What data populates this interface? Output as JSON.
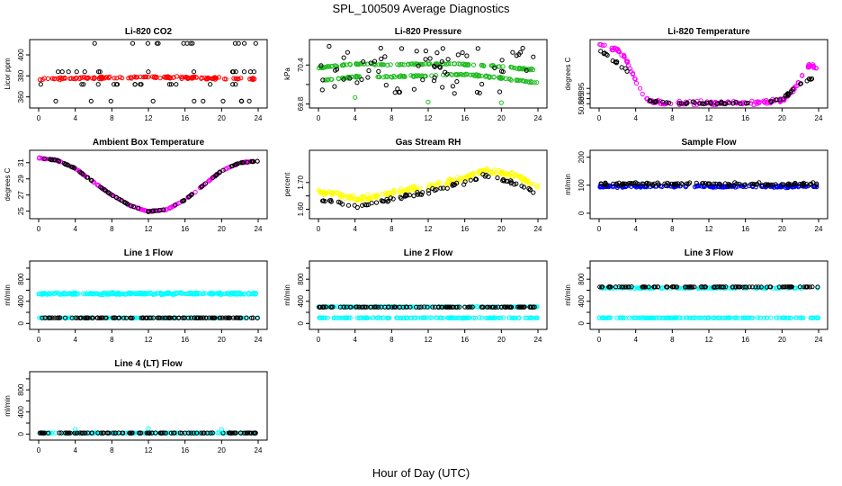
{
  "page": {
    "title": "SPL_100509  Average Diagnostics",
    "xlabel": "Hour of Day (UTC)"
  },
  "colors": {
    "black": "#000000",
    "red": "#ff0000",
    "green": "#22bb22",
    "magenta": "#ff00ff",
    "yellow": "#ffff00",
    "blue": "#0000ff",
    "cyan": "#00ffff"
  },
  "chart_data": [
    {
      "type": "scatter",
      "title": "Li-820 CO2",
      "ylabel": "Licor ppm",
      "xlim": [
        0,
        24
      ],
      "ylim": [
        352,
        412
      ],
      "xticks": [
        0,
        4,
        8,
        12,
        16,
        20,
        24
      ],
      "yticks": [
        360,
        380,
        400
      ],
      "series": [
        {
          "name": "red",
          "color": "red",
          "gen": "line",
          "pts": [
            [
              0,
              377
            ],
            [
              6,
              378
            ],
            [
              12,
              379
            ],
            [
              18,
              378
            ],
            [
              24,
              377
            ]
          ],
          "jitter": 1.5,
          "n": 140
        },
        {
          "name": "black",
          "color": "black",
          "gen": "levels",
          "levels": [
            356,
            372,
            384,
            411
          ],
          "n": 56
        }
      ]
    },
    {
      "type": "scatter",
      "title": "Li-820 Pressure",
      "ylabel": "kPa",
      "xlim": [
        0,
        24
      ],
      "ylim": [
        69.78,
        70.75
      ],
      "xticks": [
        0,
        4,
        8,
        12,
        16,
        20,
        24
      ],
      "yticks": [
        69.8,
        70.1,
        70.4
      ],
      "ytick_labels": [
        "69.8",
        "",
        "70.4"
      ],
      "series": [
        {
          "name": "green-upper",
          "color": "green",
          "gen": "line",
          "pts": [
            [
              0,
              70.36
            ],
            [
              4,
              70.42
            ],
            [
              8,
              70.4
            ],
            [
              12,
              70.42
            ],
            [
              16,
              70.41
            ],
            [
              20,
              70.38
            ],
            [
              24,
              70.32
            ]
          ],
          "jitter": 0.018,
          "n": 130
        },
        {
          "name": "green-lower",
          "color": "green",
          "gen": "line",
          "pts": [
            [
              0,
              70.16
            ],
            [
              4,
              70.22
            ],
            [
              8,
              70.22
            ],
            [
              12,
              70.24
            ],
            [
              16,
              70.26
            ],
            [
              20,
              70.2
            ],
            [
              24,
              70.12
            ]
          ],
          "jitter": 0.018,
          "n": 130
        },
        {
          "name": "black",
          "color": "black",
          "gen": "band",
          "lo": 69.95,
          "hi": 70.7,
          "n": 70
        },
        {
          "name": "green-outliers",
          "color": "green",
          "gen": "pts",
          "pts": [
            [
              4,
              69.9
            ],
            [
              12,
              69.83
            ],
            [
              20,
              69.82
            ]
          ]
        }
      ]
    },
    {
      "type": "scatter",
      "title": "Li-820 Temperature",
      "ylabel": "degrees C",
      "xlim": [
        0,
        24
      ],
      "ylim": [
        50.882,
        51.005
      ],
      "xticks": [
        0,
        4,
        8,
        12,
        16,
        20,
        24
      ],
      "yticks": [
        50.885,
        50.895,
        50.905,
        50.915
      ],
      "ytick_labels": [
        "50.885",
        "",
        "50.895",
        ""
      ],
      "series": [
        {
          "name": "magenta",
          "color": "magenta",
          "gen": "line",
          "pts": [
            [
              0,
              51.0
            ],
            [
              2,
              50.99
            ],
            [
              3,
              50.97
            ],
            [
              4,
              50.93
            ],
            [
              5,
              50.895
            ],
            [
              6,
              50.888
            ],
            [
              8,
              50.886
            ],
            [
              12,
              50.886
            ],
            [
              16,
              50.886
            ],
            [
              18,
              50.887
            ],
            [
              20,
              50.892
            ],
            [
              21,
              50.905
            ],
            [
              22,
              50.935
            ],
            [
              23,
              50.96
            ],
            [
              24,
              50.955
            ]
          ],
          "jitter": 0.006,
          "n": 170
        },
        {
          "name": "black",
          "color": "black",
          "gen": "line",
          "pts": [
            [
              0,
              50.99
            ],
            [
              3,
              50.95
            ],
            [
              4,
              50.925
            ],
            [
              5,
              50.893
            ],
            [
              6,
              50.887
            ],
            [
              12,
              50.886
            ],
            [
              18,
              50.887
            ],
            [
              20,
              50.893
            ],
            [
              22,
              50.925
            ],
            [
              24,
              50.94
            ]
          ],
          "jitter": 0.004,
          "n": 70
        }
      ]
    },
    {
      "type": "scatter",
      "title": "Ambient Box Temperature",
      "ylabel": "degrees C",
      "xlim": [
        0,
        24
      ],
      "ylim": [
        24.4,
        32.2
      ],
      "xticks": [
        0,
        4,
        8,
        12,
        16,
        20,
        24
      ],
      "yticks": [
        25,
        27,
        29,
        31
      ],
      "series": [
        {
          "name": "magenta",
          "color": "magenta",
          "gen": "line",
          "pts": [
            [
              0,
              31.6
            ],
            [
              2,
              31.3
            ],
            [
              4,
              30.3
            ],
            [
              6,
              28.6
            ],
            [
              8,
              27.0
            ],
            [
              10,
              25.7
            ],
            [
              12,
              24.95
            ],
            [
              14,
              25.2
            ],
            [
              16,
              26.4
            ],
            [
              18,
              28.2
            ],
            [
              20,
              30.0
            ],
            [
              22,
              31.0
            ],
            [
              24,
              31.2
            ]
          ],
          "jitter": 0.08,
          "n": 170
        },
        {
          "name": "black",
          "color": "black",
          "gen": "line",
          "pts": [
            [
              0,
              31.6
            ],
            [
              2,
              31.3
            ],
            [
              4,
              30.3
            ],
            [
              6,
              28.6
            ],
            [
              8,
              27.0
            ],
            [
              10,
              25.7
            ],
            [
              12,
              24.95
            ],
            [
              14,
              25.2
            ],
            [
              16,
              26.4
            ],
            [
              18,
              28.2
            ],
            [
              20,
              30.0
            ],
            [
              22,
              31.0
            ],
            [
              24,
              31.2
            ]
          ],
          "jitter": 0.05,
          "n": 90
        }
      ]
    },
    {
      "type": "scatter",
      "title": "Gas Stream RH",
      "ylabel": "percent",
      "xlim": [
        0,
        24
      ],
      "ylim": [
        1.575,
        1.81
      ],
      "xticks": [
        0,
        4,
        8,
        12,
        16,
        20,
        24
      ],
      "yticks": [
        1.6,
        1.65,
        1.7
      ],
      "ytick_labels": [
        "1.60",
        "",
        "1.70"
      ],
      "series": [
        {
          "name": "yellow",
          "color": "yellow",
          "gen": "line",
          "pts": [
            [
              0,
              1.665
            ],
            [
              2,
              1.66
            ],
            [
              4,
              1.64
            ],
            [
              6,
              1.645
            ],
            [
              8,
              1.66
            ],
            [
              10,
              1.675
            ],
            [
              12,
              1.685
            ],
            [
              14,
              1.7
            ],
            [
              16,
              1.715
            ],
            [
              18,
              1.745
            ],
            [
              20,
              1.74
            ],
            [
              22,
              1.72
            ],
            [
              24,
              1.685
            ]
          ],
          "jitter": 0.014,
          "n": 200
        },
        {
          "name": "black",
          "color": "black",
          "gen": "line",
          "pts": [
            [
              0,
              1.635
            ],
            [
              2,
              1.625
            ],
            [
              4,
              1.61
            ],
            [
              6,
              1.625
            ],
            [
              8,
              1.64
            ],
            [
              10,
              1.65
            ],
            [
              12,
              1.665
            ],
            [
              14,
              1.68
            ],
            [
              16,
              1.7
            ],
            [
              18,
              1.725
            ],
            [
              20,
              1.715
            ],
            [
              22,
              1.69
            ],
            [
              24,
              1.655
            ]
          ],
          "jitter": 0.012,
          "n": 80
        }
      ]
    },
    {
      "type": "scatter",
      "title": "Sample Flow",
      "ylabel": "ml/min",
      "xlim": [
        0,
        24
      ],
      "ylim": [
        -10,
        215
      ],
      "xticks": [
        0,
        4,
        8,
        12,
        16,
        20,
        24
      ],
      "yticks": [
        0,
        100,
        200
      ],
      "series": [
        {
          "name": "blue",
          "color": "blue",
          "gen": "line",
          "pts": [
            [
              0,
              96
            ],
            [
              24,
              96
            ]
          ],
          "jitter": 6,
          "n": 200
        },
        {
          "name": "black",
          "color": "black",
          "gen": "line",
          "pts": [
            [
              0,
              104
            ],
            [
              24,
              104
            ]
          ],
          "jitter": 7,
          "n": 110
        }
      ]
    },
    {
      "type": "scatter",
      "title": "Line 1 Flow",
      "ylabel": "ml/min",
      "xlim": [
        0,
        24
      ],
      "ylim": [
        -60,
        1080
      ],
      "xticks": [
        0,
        4,
        8,
        12,
        16,
        20,
        24
      ],
      "yticks": [
        0,
        200,
        400,
        600,
        800,
        1000
      ],
      "ytick_labels": [
        "0",
        "",
        "400",
        "",
        "800",
        ""
      ],
      "series": [
        {
          "name": "cyan-high",
          "color": "cyan",
          "gen": "line",
          "pts": [
            [
              0,
              540
            ],
            [
              24,
              540
            ]
          ],
          "jitter": 28,
          "n": 240
        },
        {
          "name": "cyan-low",
          "color": "cyan",
          "gen": "line",
          "pts": [
            [
              0,
              100
            ],
            [
              24,
              100
            ]
          ],
          "jitter": 4,
          "n": 90
        },
        {
          "name": "black",
          "color": "black",
          "gen": "line",
          "pts": [
            [
              0,
              100
            ],
            [
              24,
              100
            ]
          ],
          "jitter": 3,
          "n": 120
        }
      ]
    },
    {
      "type": "scatter",
      "title": "Line 2 Flow",
      "ylabel": "ml/min",
      "xlim": [
        0,
        24
      ],
      "ylim": [
        -60,
        1080
      ],
      "xticks": [
        0,
        4,
        8,
        12,
        16,
        20,
        24
      ],
      "yticks": [
        0,
        200,
        400,
        600,
        800,
        1000
      ],
      "ytick_labels": [
        "0",
        "",
        "400",
        "",
        "800",
        ""
      ],
      "series": [
        {
          "name": "cyan-high",
          "color": "cyan",
          "gen": "line",
          "pts": [
            [
              0,
              300
            ],
            [
              24,
              300
            ]
          ],
          "jitter": 8,
          "n": 150
        },
        {
          "name": "cyan-low",
          "color": "cyan",
          "gen": "line",
          "pts": [
            [
              0,
              100
            ],
            [
              24,
              100
            ]
          ],
          "jitter": 8,
          "n": 150
        },
        {
          "name": "black",
          "color": "black",
          "gen": "line",
          "pts": [
            [
              0,
              295
            ],
            [
              24,
              295
            ]
          ],
          "jitter": 5,
          "n": 120
        }
      ]
    },
    {
      "type": "scatter",
      "title": "Line 3 Flow",
      "ylabel": "ml/min",
      "xlim": [
        0,
        24
      ],
      "ylim": [
        -60,
        1080
      ],
      "xticks": [
        0,
        4,
        8,
        12,
        16,
        20,
        24
      ],
      "yticks": [
        0,
        200,
        400,
        600,
        800,
        1000
      ],
      "ytick_labels": [
        "0",
        "",
        "400",
        "",
        "800",
        ""
      ],
      "series": [
        {
          "name": "cyan-high",
          "color": "cyan",
          "gen": "line",
          "pts": [
            [
              0,
              640
            ],
            [
              24,
              640
            ]
          ],
          "jitter": 10,
          "n": 130
        },
        {
          "name": "cyan-low",
          "color": "cyan",
          "gen": "line",
          "pts": [
            [
              0,
              100
            ],
            [
              24,
              100
            ]
          ],
          "jitter": 6,
          "n": 170
        },
        {
          "name": "black",
          "color": "black",
          "gen": "line",
          "pts": [
            [
              0.5,
              660
            ],
            [
              24,
              660
            ]
          ],
          "jitter": 5,
          "n": 110
        }
      ]
    },
    {
      "type": "scatter",
      "title": "Line 4 (LT) Flow",
      "ylabel": "ml/min",
      "xlim": [
        0,
        24
      ],
      "ylim": [
        -60,
        1080
      ],
      "xticks": [
        0,
        4,
        8,
        12,
        16,
        20,
        24
      ],
      "yticks": [
        0,
        200,
        400,
        600,
        800,
        1000
      ],
      "ytick_labels": [
        "0",
        "",
        "400",
        "",
        "800",
        ""
      ],
      "series": [
        {
          "name": "cyan",
          "color": "cyan",
          "gen": "line",
          "pts": [
            [
              0,
              20
            ],
            [
              24,
              20
            ]
          ],
          "jitter": 4,
          "n": 150
        },
        {
          "name": "black",
          "color": "black",
          "gen": "line",
          "pts": [
            [
              0,
              20
            ],
            [
              24,
              20
            ]
          ],
          "jitter": 3,
          "n": 110
        },
        {
          "name": "cyan-spikes",
          "color": "cyan",
          "gen": "pts",
          "pts": [
            [
              4,
              90
            ],
            [
              12,
              100
            ],
            [
              20,
              85
            ]
          ]
        }
      ]
    }
  ]
}
